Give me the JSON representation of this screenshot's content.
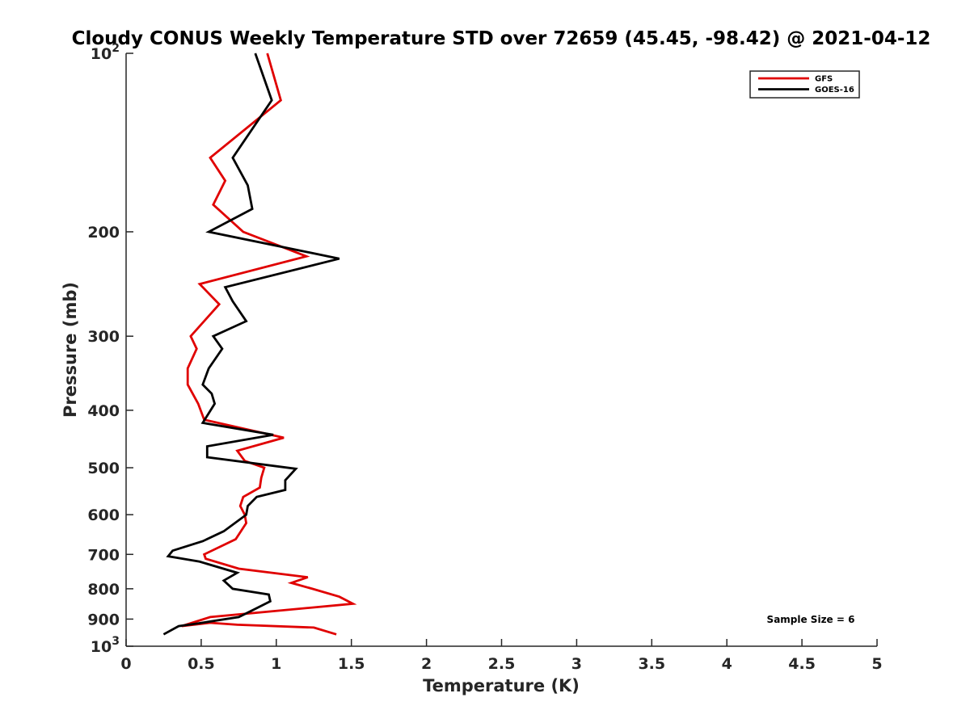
{
  "chart_data": {
    "type": "line",
    "title": "Cloudy CONUS Weekly Temperature STD over 72659 (45.45, -98.42) @ 2021-04-12",
    "xlabel": "Temperature (K)",
    "ylabel": "Pressure (mb)",
    "xlim": [
      0,
      5
    ],
    "ylim": [
      100,
      1000
    ],
    "yscale": "log",
    "y_reversed": true,
    "x_ticks": [
      "0",
      "0.5",
      "1",
      "1.5",
      "2",
      "2.5",
      "3",
      "3.5",
      "4",
      "4.5",
      "5"
    ],
    "x_tick_values": [
      0,
      0.5,
      1,
      1.5,
      2,
      2.5,
      3,
      3.5,
      4,
      4.5,
      5
    ],
    "y_ticks": [
      {
        "value": 100,
        "base": "10",
        "exp": "2"
      },
      {
        "value": 200,
        "label": "200"
      },
      {
        "value": 300,
        "label": "300"
      },
      {
        "value": 400,
        "label": "400"
      },
      {
        "value": 500,
        "label": "500"
      },
      {
        "value": 600,
        "label": "600"
      },
      {
        "value": 700,
        "label": "700"
      },
      {
        "value": 800,
        "label": "800"
      },
      {
        "value": 900,
        "label": "900"
      },
      {
        "value": 1000,
        "base": "10",
        "exp": "3"
      }
    ],
    "grid": false,
    "legend": {
      "position": "top-right",
      "entries": [
        "GFS",
        "GOES-16"
      ]
    },
    "annotation": "Sample Size = 6",
    "series": [
      {
        "name": "GFS",
        "color": "#e00000",
        "points": [
          [
            0.94,
            100
          ],
          [
            1.03,
            120
          ],
          [
            0.56,
            150
          ],
          [
            0.66,
            164
          ],
          [
            0.58,
            180
          ],
          [
            0.78,
            200
          ],
          [
            1.2,
            220
          ],
          [
            0.49,
            245
          ],
          [
            0.62,
            265
          ],
          [
            0.43,
            300
          ],
          [
            0.47,
            315
          ],
          [
            0.41,
            340
          ],
          [
            0.41,
            362
          ],
          [
            0.48,
            390
          ],
          [
            0.52,
            415
          ],
          [
            1.05,
            445
          ],
          [
            0.74,
            468
          ],
          [
            0.79,
            487
          ],
          [
            0.92,
            500
          ],
          [
            0.9,
            520
          ],
          [
            0.89,
            540
          ],
          [
            0.78,
            560
          ],
          [
            0.76,
            580
          ],
          [
            0.79,
            600
          ],
          [
            0.8,
            620
          ],
          [
            0.73,
            660
          ],
          [
            0.52,
            700
          ],
          [
            0.53,
            712
          ],
          [
            0.75,
            740
          ],
          [
            1.21,
            765
          ],
          [
            1.1,
            782
          ],
          [
            1.24,
            800
          ],
          [
            1.42,
            825
          ],
          [
            1.51,
            848
          ],
          [
            0.56,
            893
          ],
          [
            0.37,
            925
          ],
          [
            0.56,
            913
          ],
          [
            0.74,
            920
          ],
          [
            1.25,
            930
          ],
          [
            1.4,
            955
          ]
        ]
      },
      {
        "name": "GOES-16",
        "color": "#000000",
        "points": [
          [
            0.86,
            100
          ],
          [
            0.97,
            120
          ],
          [
            0.71,
            150
          ],
          [
            0.81,
            167
          ],
          [
            0.84,
            183
          ],
          [
            0.55,
            200
          ],
          [
            1.42,
            222
          ],
          [
            0.66,
            248
          ],
          [
            0.71,
            262
          ],
          [
            0.8,
            283
          ],
          [
            0.58,
            300
          ],
          [
            0.64,
            315
          ],
          [
            0.55,
            340
          ],
          [
            0.51,
            362
          ],
          [
            0.57,
            375
          ],
          [
            0.59,
            390
          ],
          [
            0.51,
            420
          ],
          [
            0.98,
            440
          ],
          [
            0.54,
            460
          ],
          [
            0.54,
            480
          ],
          [
            1.13,
            502
          ],
          [
            1.06,
            525
          ],
          [
            1.06,
            545
          ],
          [
            0.87,
            560
          ],
          [
            0.81,
            580
          ],
          [
            0.8,
            600
          ],
          [
            0.65,
            640
          ],
          [
            0.51,
            665
          ],
          [
            0.31,
            690
          ],
          [
            0.28,
            705
          ],
          [
            0.49,
            720
          ],
          [
            0.74,
            752
          ],
          [
            0.65,
            775
          ],
          [
            0.71,
            800
          ],
          [
            0.95,
            818
          ],
          [
            0.96,
            840
          ],
          [
            0.86,
            865
          ],
          [
            0.75,
            893
          ],
          [
            0.48,
            915
          ],
          [
            0.35,
            925
          ],
          [
            0.25,
            955
          ]
        ]
      }
    ]
  }
}
